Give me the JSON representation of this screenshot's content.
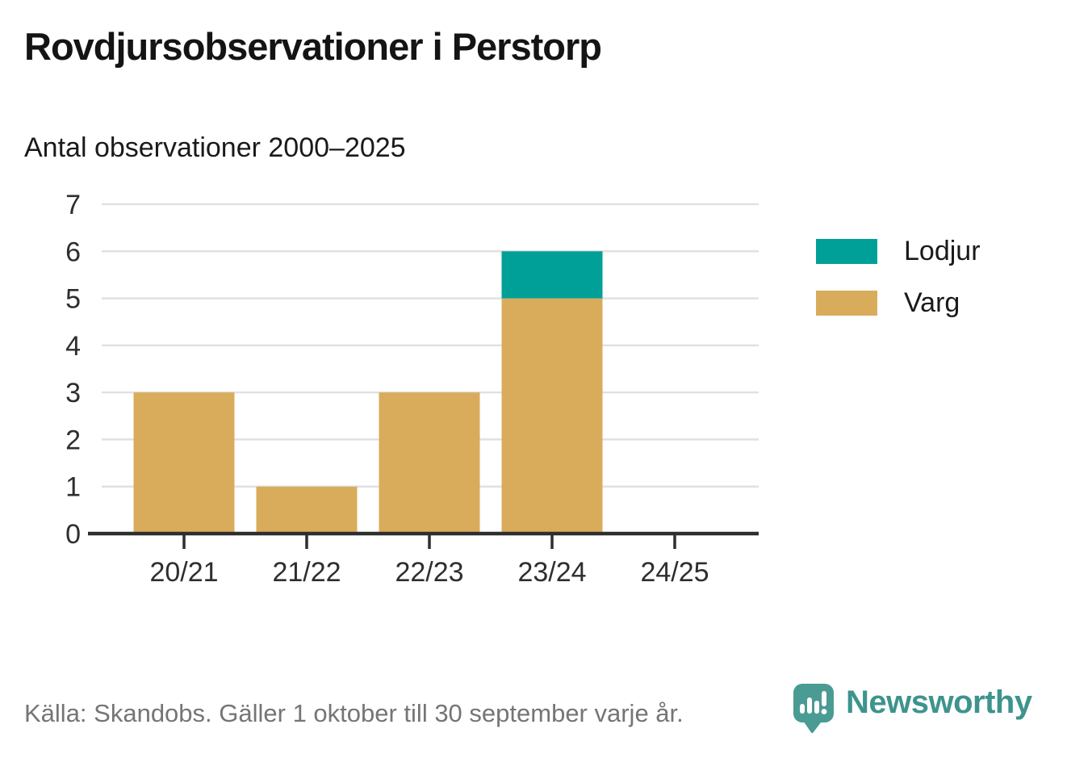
{
  "title": "Rovdjursobservationer i Perstorp",
  "subtitle": "Antal observationer 2000–2025",
  "legend": [
    {
      "label": "Lodjur",
      "color": "#00a099"
    },
    {
      "label": "Varg",
      "color": "#d9ac5c"
    }
  ],
  "footer": {
    "source": "Källa: Skandobs. Gäller 1 oktober till 30 september varje år."
  },
  "branding": {
    "name": "Newsworthy",
    "icon": "newsworthy-speech-bubble-bars-icon",
    "wordmark_color": "#3e948d",
    "icon_color": "#4a9b94"
  },
  "colors": {
    "lodjur": "#00a099",
    "varg": "#d9ac5c",
    "gridline": "#e1e1e1",
    "axis": "#2e2e2e",
    "tick_label": "#2e2e2e"
  },
  "chart_data": {
    "type": "bar",
    "stacked": true,
    "title": "Rovdjursobservationer i Perstorp",
    "subtitle": "Antal observationer 2000–2025",
    "categories": [
      "20/21",
      "21/22",
      "22/23",
      "23/24",
      "24/25"
    ],
    "series": [
      {
        "name": "Varg",
        "color": "#d9ac5c",
        "values": [
          3,
          1,
          3,
          5,
          0
        ]
      },
      {
        "name": "Lodjur",
        "color": "#00a099",
        "values": [
          0,
          0,
          0,
          1,
          0
        ]
      }
    ],
    "totals": [
      3,
      1,
      3,
      6,
      0
    ],
    "xlabel": "",
    "ylabel": "",
    "ylim": [
      0,
      7
    ],
    "yticks": [
      0,
      1,
      2,
      3,
      4,
      5,
      6,
      7
    ],
    "grid": true,
    "legend_position": "right"
  }
}
